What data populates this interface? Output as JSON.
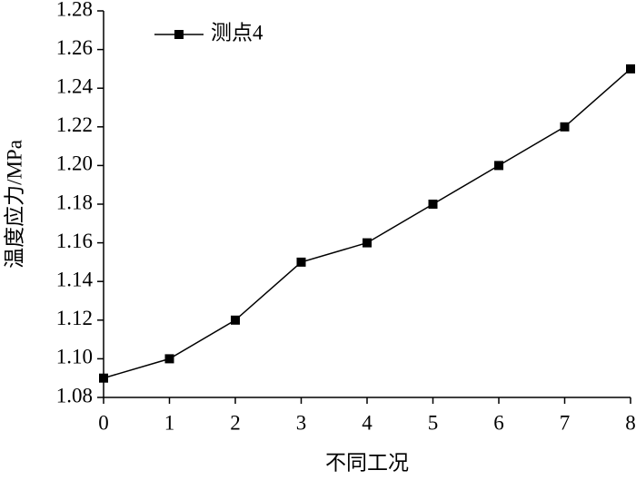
{
  "chart_data": {
    "type": "line",
    "x_label": "不同工况",
    "y_label": "温度应力/MPa",
    "x": [
      0,
      1,
      2,
      3,
      4,
      5,
      6,
      7,
      8
    ],
    "series": [
      {
        "name": "测点4",
        "color": "#000000",
        "values": [
          1.09,
          1.1,
          1.12,
          1.15,
          1.16,
          1.18,
          1.2,
          1.22,
          1.25
        ]
      }
    ],
    "xlim": [
      0,
      8
    ],
    "xticks": [
      0,
      1,
      2,
      3,
      4,
      5,
      6,
      7,
      8
    ],
    "ylim": [
      1.08,
      1.28
    ],
    "yticks": [
      1.08,
      {
        "value": 1.1,
        "label": "1.10"
      },
      1.12,
      1.14,
      1.16,
      1.18,
      {
        "value": 1.2,
        "label": "1.20"
      },
      1.22,
      1.24,
      1.26,
      1.28
    ],
    "grid": false,
    "legend": "upper left"
  }
}
